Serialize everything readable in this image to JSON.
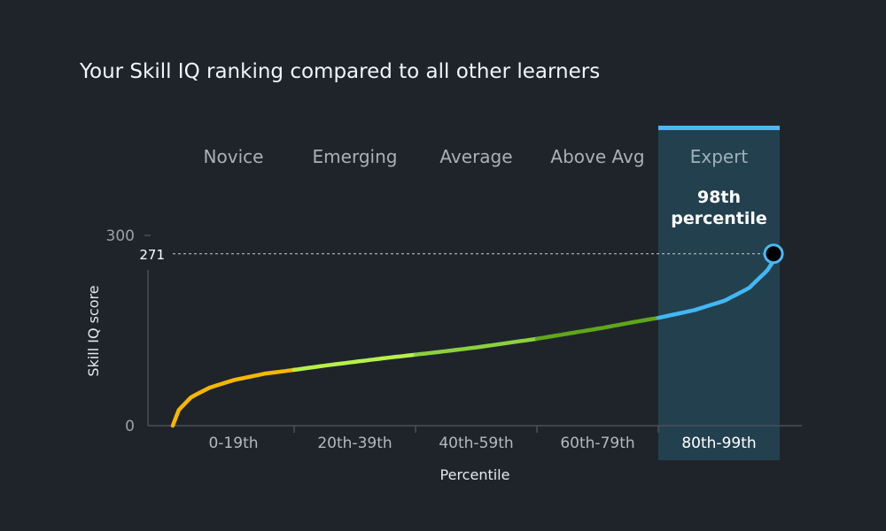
{
  "chart_data": {
    "type": "line",
    "title": "Your Skill IQ ranking compared to all other learners",
    "xlabel": "Percentile",
    "ylabel": "Skill IQ score",
    "ylim": [
      0,
      300
    ],
    "xlim": [
      0,
      99
    ],
    "yticks": [
      {
        "value": 0,
        "label": "0"
      },
      {
        "value": 300,
        "label": "300"
      }
    ],
    "levels": [
      {
        "name": "Novice",
        "range_label": "0-19th",
        "start": 0,
        "end": 19.8,
        "color": "#f5b800"
      },
      {
        "name": "Emerging",
        "range_label": "20th-39th",
        "start": 19.8,
        "end": 39.6,
        "color": "#b8f04a"
      },
      {
        "name": "Average",
        "range_label": "40th-59th",
        "start": 39.6,
        "end": 59.4,
        "color": "#8bd13e"
      },
      {
        "name": "Above Avg",
        "range_label": "60th-79th",
        "start": 59.4,
        "end": 79.2,
        "color": "#5fa61a"
      },
      {
        "name": "Expert",
        "range_label": "80th-99th",
        "start": 79.2,
        "end": 99,
        "color": "#42b8f2"
      }
    ],
    "active_level": "Expert",
    "curve": {
      "x": [
        0,
        1,
        3,
        6,
        10,
        15,
        19.8,
        25,
        30,
        35,
        39.6,
        45,
        50,
        55,
        59.4,
        65,
        70,
        75,
        79.2,
        85,
        90,
        94,
        97,
        99
      ],
      "y": [
        0,
        25,
        45,
        60,
        72,
        82,
        88,
        95,
        101,
        107,
        112,
        118,
        124,
        131,
        137,
        146,
        154,
        163,
        170,
        182,
        197,
        217,
        245,
        275
      ]
    },
    "marker": {
      "percentile": 98,
      "score": 271,
      "score_label": "271",
      "percentile_label": [
        "98th",
        "percentile"
      ]
    },
    "colors": {
      "background": "#1f242b",
      "highlight_band": "#23404f",
      "highlight_bar": "#4bb8f1",
      "axis": "#4a5058",
      "grid": "#c8ccd0"
    }
  }
}
